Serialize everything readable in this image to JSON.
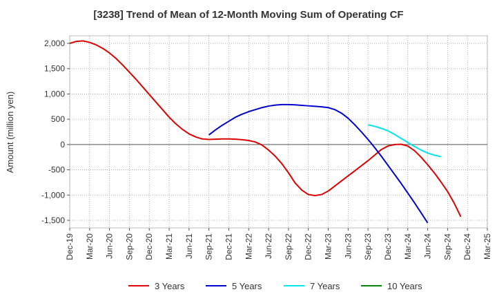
{
  "chart_data": {
    "type": "line",
    "title": "[3238]  Trend of Mean of 12-Month Moving Sum of Operating CF",
    "xlabel": "",
    "ylabel": "Amount (million yen)",
    "ylim": [
      -1650,
      2150
    ],
    "y_ticks": [
      2000,
      1500,
      1000,
      500,
      0,
      -500,
      -1000,
      -1500
    ],
    "y_tick_labels": [
      "2,000",
      "1,500",
      "1,000",
      "500",
      "0",
      "-500",
      "-1,000",
      "-1,500"
    ],
    "x_tick_labels": [
      "Dec-19",
      "Mar-20",
      "Jun-20",
      "Sep-20",
      "Dec-20",
      "Mar-21",
      "Jun-21",
      "Sep-21",
      "Dec-21",
      "Mar-22",
      "Jun-22",
      "Sep-22",
      "Dec-22",
      "Mar-23",
      "Jun-23",
      "Sep-23",
      "Dec-23",
      "Mar-24",
      "Jun-24",
      "Sep-24",
      "Dec-24",
      "Mar-25"
    ],
    "grid": true,
    "legend_position": "bottom",
    "series": [
      {
        "name": "3 Years",
        "color": "#dd0000",
        "start_index": 0,
        "values": [
          2000,
          2040,
          2050,
          2020,
          1970,
          1900,
          1810,
          1700,
          1570,
          1430,
          1290,
          1140,
          990,
          840,
          690,
          540,
          410,
          300,
          210,
          150,
          110,
          100,
          105,
          110,
          110,
          105,
          95,
          80,
          50,
          -10,
          -110,
          -230,
          -380,
          -560,
          -760,
          -900,
          -990,
          -1010,
          -990,
          -920,
          -820,
          -720,
          -620,
          -520,
          -420,
          -320,
          -210,
          -100,
          -30,
          0,
          5,
          -30,
          -120,
          -250,
          -400,
          -560,
          -740,
          -930,
          -1160,
          -1430
        ]
      },
      {
        "name": "5 Years",
        "color": "#0000cc",
        "start_index": 21,
        "values": [
          190,
          290,
          380,
          460,
          540,
          600,
          650,
          690,
          730,
          760,
          780,
          790,
          790,
          785,
          775,
          765,
          755,
          745,
          730,
          690,
          620,
          520,
          390,
          250,
          100,
          -60,
          -230,
          -410,
          -590,
          -770,
          -960,
          -1150,
          -1350,
          -1550
        ]
      },
      {
        "name": "7 Years",
        "color": "#00e5ee",
        "start_index": 45,
        "values": [
          390,
          360,
          320,
          270,
          200,
          120,
          40,
          -40,
          -110,
          -170,
          -210,
          -240
        ]
      },
      {
        "name": "10 Years",
        "color": "#008000",
        "start_index": 0,
        "values": []
      }
    ]
  }
}
